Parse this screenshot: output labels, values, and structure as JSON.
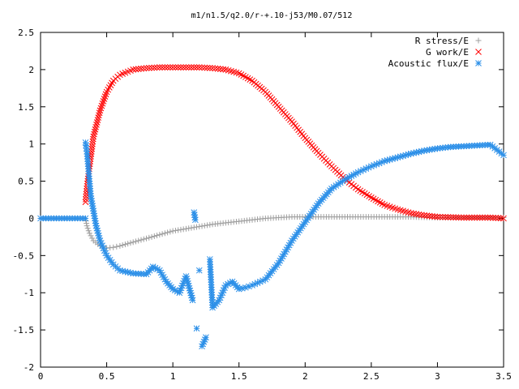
{
  "chart_data": {
    "type": "scatter",
    "title": "m1/n1.5/q2.0/r-+.10-j53/M0.07/512",
    "xlabel": "",
    "ylabel": "",
    "xlim": [
      0,
      3.5
    ],
    "ylim": [
      -2,
      2.5
    ],
    "x_ticks": [
      "0",
      "0.5",
      "1",
      "1.5",
      "2",
      "2.5",
      "3",
      "3.5"
    ],
    "y_ticks": [
      "2.5",
      "2",
      "1.5",
      "1",
      "0.5",
      "0",
      "-0.5",
      "-1",
      "-1.5",
      "-2"
    ],
    "grid": false,
    "legend_position": "top-right",
    "series": [
      {
        "name": "R stress/E",
        "marker": "plus",
        "color": "#a0a0a0",
        "points": [
          [
            0,
            0
          ],
          [
            0.1,
            0
          ],
          [
            0.2,
            0
          ],
          [
            0.3,
            0
          ],
          [
            0.34,
            0
          ],
          [
            0.35,
            -0.1
          ],
          [
            0.37,
            -0.2
          ],
          [
            0.4,
            -0.3
          ],
          [
            0.45,
            -0.37
          ],
          [
            0.5,
            -0.4
          ],
          [
            0.55,
            -0.39
          ],
          [
            0.6,
            -0.37
          ],
          [
            0.7,
            -0.32
          ],
          [
            0.8,
            -0.27
          ],
          [
            0.9,
            -0.22
          ],
          [
            1.0,
            -0.17
          ],
          [
            1.1,
            -0.14
          ],
          [
            1.2,
            -0.11
          ],
          [
            1.3,
            -0.08
          ],
          [
            1.4,
            -0.06
          ],
          [
            1.5,
            -0.04
          ],
          [
            1.6,
            -0.02
          ],
          [
            1.7,
            0
          ],
          [
            1.8,
            0.01
          ],
          [
            1.9,
            0.02
          ],
          [
            2.0,
            0.02
          ],
          [
            2.2,
            0.02
          ],
          [
            2.4,
            0.02
          ],
          [
            2.6,
            0.02
          ],
          [
            2.8,
            0.02
          ],
          [
            3.0,
            0.01
          ],
          [
            3.2,
            0.01
          ],
          [
            3.4,
            0.01
          ],
          [
            3.5,
            0.01
          ]
        ]
      },
      {
        "name": "G work/E",
        "marker": "cross",
        "color": "#ff0000",
        "points": [
          [
            0.34,
            0.22
          ],
          [
            0.35,
            0.4
          ],
          [
            0.37,
            0.7
          ],
          [
            0.4,
            1.1
          ],
          [
            0.45,
            1.45
          ],
          [
            0.5,
            1.7
          ],
          [
            0.55,
            1.85
          ],
          [
            0.6,
            1.93
          ],
          [
            0.7,
            2.0
          ],
          [
            0.8,
            2.02
          ],
          [
            0.9,
            2.03
          ],
          [
            1.0,
            2.03
          ],
          [
            1.1,
            2.03
          ],
          [
            1.2,
            2.03
          ],
          [
            1.3,
            2.02
          ],
          [
            1.4,
            2.0
          ],
          [
            1.5,
            1.95
          ],
          [
            1.6,
            1.85
          ],
          [
            1.7,
            1.7
          ],
          [
            1.8,
            1.5
          ],
          [
            1.9,
            1.3
          ],
          [
            2.0,
            1.08
          ],
          [
            2.1,
            0.88
          ],
          [
            2.2,
            0.7
          ],
          [
            2.3,
            0.53
          ],
          [
            2.4,
            0.39
          ],
          [
            2.5,
            0.28
          ],
          [
            2.6,
            0.18
          ],
          [
            2.7,
            0.12
          ],
          [
            2.8,
            0.07
          ],
          [
            2.9,
            0.04
          ],
          [
            3.0,
            0.02
          ],
          [
            3.2,
            0.01
          ],
          [
            3.4,
            0.01
          ],
          [
            3.5,
            0
          ]
        ]
      },
      {
        "name": "Acoustic flux/E",
        "marker": "star",
        "color": "#2b8fe8",
        "points": [
          [
            0,
            0
          ],
          [
            0.1,
            0
          ],
          [
            0.2,
            0
          ],
          [
            0.3,
            0
          ],
          [
            0.34,
            0
          ],
          [
            0.34,
            1.02
          ],
          [
            0.35,
            0.9
          ],
          [
            0.36,
            0.7
          ],
          [
            0.37,
            0.5
          ],
          [
            0.38,
            0.3
          ],
          [
            0.4,
            0.1
          ],
          [
            0.42,
            -0.1
          ],
          [
            0.45,
            -0.3
          ],
          [
            0.5,
            -0.5
          ],
          [
            0.55,
            -0.62
          ],
          [
            0.6,
            -0.7
          ],
          [
            0.7,
            -0.74
          ],
          [
            0.8,
            -0.75
          ],
          [
            0.85,
            -0.65
          ],
          [
            0.9,
            -0.7
          ],
          [
            0.95,
            -0.85
          ],
          [
            1.0,
            -0.95
          ],
          [
            1.05,
            -1.0
          ],
          [
            1.1,
            -0.78
          ],
          [
            1.15,
            -1.1
          ],
          [
            1.18,
            -1.48
          ],
          [
            1.2,
            -0.7
          ],
          [
            1.22,
            -1.72
          ],
          [
            1.25,
            -1.6
          ],
          [
            1.28,
            -0.55
          ],
          [
            1.3,
            -1.2
          ],
          [
            1.35,
            -1.1
          ],
          [
            1.4,
            -0.9
          ],
          [
            1.45,
            -0.85
          ],
          [
            1.5,
            -0.95
          ],
          [
            1.55,
            -0.93
          ],
          [
            1.6,
            -0.9
          ],
          [
            1.7,
            -0.82
          ],
          [
            1.8,
            -0.6
          ],
          [
            1.9,
            -0.3
          ],
          [
            2.0,
            -0.05
          ],
          [
            2.1,
            0.2
          ],
          [
            2.2,
            0.4
          ],
          [
            2.3,
            0.52
          ],
          [
            2.4,
            0.62
          ],
          [
            2.5,
            0.7
          ],
          [
            2.6,
            0.77
          ],
          [
            2.7,
            0.82
          ],
          [
            2.8,
            0.87
          ],
          [
            2.9,
            0.91
          ],
          [
            3.0,
            0.94
          ],
          [
            3.1,
            0.96
          ],
          [
            3.2,
            0.97
          ],
          [
            3.3,
            0.98
          ],
          [
            3.4,
            0.99
          ],
          [
            3.5,
            0.85
          ],
          [
            1.16,
            0.08
          ],
          [
            1.17,
            -0.02
          ]
        ]
      }
    ]
  }
}
